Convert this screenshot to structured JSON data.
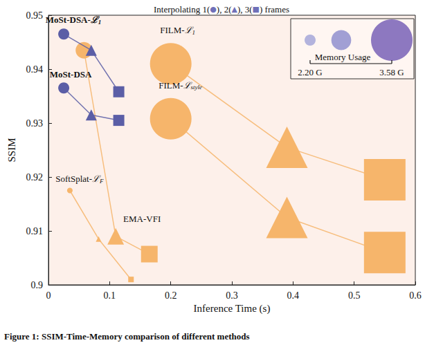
{
  "chart_data": {
    "type": "line",
    "title": "Interpolating 1(●), 2(▲), 3(■) frames",
    "caption": "Figure 1: SSIM-Time-Memory comparison of different methods",
    "x_label": "Inference Time (s)",
    "y_label": "SSIM",
    "xlim": [
      0,
      0.6
    ],
    "xticks": [
      0,
      0.1,
      0.2,
      0.3,
      0.4,
      0.5,
      0.6
    ],
    "ylim": [
      0.9,
      0.95
    ],
    "yticks": [
      0.9,
      0.91,
      0.92,
      0.93,
      0.94,
      0.95
    ],
    "grid": false,
    "memory_legend": {
      "title": "Memory Usage",
      "sizes": [
        2.2,
        2.6,
        3.58
      ],
      "ticks": [
        {
          "value": 2.2,
          "label": "2.20 G"
        },
        {
          "value": 3.58,
          "label": "3.58 G"
        }
      ]
    },
    "series": [
      {
        "name": "FILM-ℒ1",
        "color": "#f6b56b",
        "x": [
          0.2,
          0.39,
          0.55
        ],
        "values": [
          0.941,
          0.9255,
          0.9195
        ],
        "frames": [
          1,
          2,
          3
        ],
        "memory": [
          3.58,
          3.58,
          3.58
        ]
      },
      {
        "name": "FILM-ℒstyle",
        "color": "#f6b56b",
        "x": [
          0.2,
          0.39,
          0.55
        ],
        "values": [
          0.9308,
          0.9125,
          0.906
        ],
        "frames": [
          1,
          2,
          3
        ],
        "memory": [
          3.58,
          3.58,
          3.58
        ]
      },
      {
        "name": "SoftSplat-ℒF",
        "color": "#f6b56b",
        "x": [
          0.035,
          0.082,
          0.135
        ],
        "values": [
          0.9175,
          0.9085,
          0.901
        ],
        "frames": [
          1,
          2,
          3
        ],
        "memory": [
          1.95,
          1.95,
          1.95
        ]
      },
      {
        "name": "EMA-VFI",
        "color": "#f6b56b",
        "x": [
          0.058,
          0.11,
          0.165
        ],
        "values": [
          0.9435,
          0.909,
          0.9057
        ],
        "frames": [
          1,
          2,
          3
        ],
        "memory": [
          2.45,
          2.45,
          2.45
        ]
      },
      {
        "name": "MoSt-DSA",
        "color": "#5b5ea6",
        "x": [
          0.025,
          0.07,
          0.115
        ],
        "values": [
          0.9365,
          0.9315,
          0.9305
        ],
        "frames": [
          1,
          2,
          3
        ],
        "memory": [
          2.2,
          2.2,
          2.2
        ]
      },
      {
        "name": "MoSt-DSA-ℒ1",
        "color": "#5b5ea6",
        "x": [
          0.025,
          0.07,
          0.115
        ],
        "values": [
          0.9465,
          0.9435,
          0.9358
        ],
        "frames": [
          1,
          2,
          3
        ],
        "memory": [
          2.2,
          2.2,
          2.2
        ]
      }
    ]
  }
}
